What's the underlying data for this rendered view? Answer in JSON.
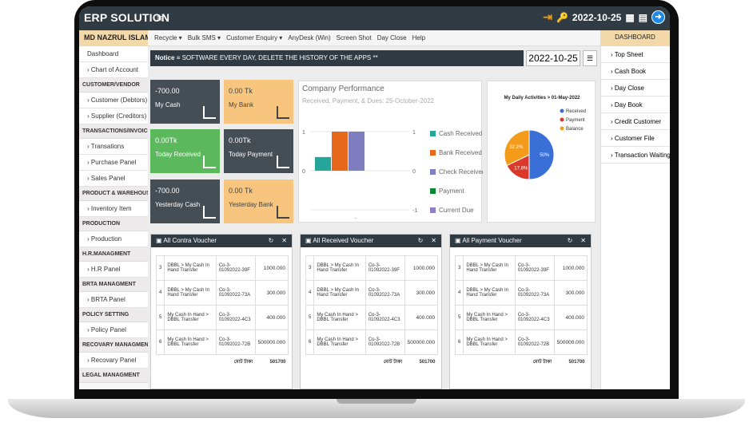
{
  "app": {
    "title": "ERP SOLUTION",
    "date": "2022-10-25"
  },
  "user": {
    "name": "MD NAZRUL ISLAM"
  },
  "toolbar": [
    "Recycle ▾",
    "Bulk SMS ▾",
    "Customer Enquiry ▾",
    "AnyDesk (Win)",
    "Screen Shot",
    "Day Close",
    "Help"
  ],
  "dashboard_label": "DASHBOARD",
  "sidebar": [
    {
      "type": "item",
      "label": "Dashboard"
    },
    {
      "type": "item",
      "label": "› Chart of Account"
    },
    {
      "type": "head",
      "label": "CUSTOMER/VENDOR"
    },
    {
      "type": "item",
      "label": "› Customer (Debtors)"
    },
    {
      "type": "item",
      "label": "› Supplier (Creditors)"
    },
    {
      "type": "head",
      "label": "TRANSACTIONS/INVOICE"
    },
    {
      "type": "item",
      "label": "› Transations"
    },
    {
      "type": "item",
      "label": "› Purchase Panel"
    },
    {
      "type": "item",
      "label": "› Sales Panel"
    },
    {
      "type": "head",
      "label": "PRODUCT & WAREHOUSES"
    },
    {
      "type": "item",
      "label": "› Inventory Item"
    },
    {
      "type": "head",
      "label": "PRODUCTION"
    },
    {
      "type": "item",
      "label": "› Production"
    },
    {
      "type": "head",
      "label": "H.R.MANAGMENT"
    },
    {
      "type": "item",
      "label": "› H.R Panel"
    },
    {
      "type": "head",
      "label": "BRTA MANAGMENT"
    },
    {
      "type": "item",
      "label": "› BRTA Panel"
    },
    {
      "type": "head",
      "label": "POLICY SETTING"
    },
    {
      "type": "item",
      "label": "› Policy Panel"
    },
    {
      "type": "head",
      "label": "RECOVARY MANAGMENT"
    },
    {
      "type": "item",
      "label": "› Recovary Panel"
    },
    {
      "type": "head",
      "label": "LEGAL MANAGMENT"
    }
  ],
  "right_menu": [
    "› Top Sheet",
    "› Cash Book",
    "› Day Close",
    "› Day Book",
    "› Credit Customer",
    "› Customer File",
    "› Transaction Waiting"
  ],
  "notice": {
    "label": "Notice",
    "text": "≡ SOFTWARE EVERY DAY, DELETE THE HISTORY OF THE APPS **"
  },
  "cards": [
    {
      "value": "-700.00",
      "label": "My Cash",
      "bg": "#454d55",
      "fg": "#ffffff"
    },
    {
      "value": "0.00 Tk",
      "label": "My Bank",
      "bg": "#f7c57d",
      "fg": "#444444"
    },
    {
      "value": "0.00Tk",
      "label": "Today Received",
      "bg": "#5cb85c",
      "fg": "#ffffff"
    },
    {
      "value": "0.00Tk",
      "label": "Today Payment",
      "bg": "#454d55",
      "fg": "#ffffff"
    },
    {
      "value": "-700.00",
      "label": "Yesterday Cash",
      "bg": "#454d55",
      "fg": "#ffffff"
    },
    {
      "value": "0.00 Tk",
      "label": "Yesterday Bank",
      "bg": "#f7c57d",
      "fg": "#444444"
    }
  ],
  "chart_data": [
    {
      "type": "bar",
      "title": "Company Performance",
      "subtitle": "Received, Payment, & Dues: 25-October-2022",
      "categories": [
        "-"
      ],
      "series": [
        {
          "name": "Cash Received",
          "values": [
            0.35
          ],
          "color": "#26a69a"
        },
        {
          "name": "Bank Received",
          "values": [
            1
          ],
          "color": "#e8681c"
        },
        {
          "name": "Check Received",
          "values": [
            1
          ],
          "color": "#7e7ec0"
        },
        {
          "name": "Payment",
          "values": [
            0
          ],
          "color": "#0a8a2e"
        },
        {
          "name": "Current Due",
          "values": [
            0
          ],
          "color": "#8f7fc4"
        }
      ],
      "ylim": [
        -1,
        1
      ],
      "left_ticks": [
        "1",
        "0"
      ],
      "right_ticks": [
        "1",
        "0",
        "-1"
      ]
    },
    {
      "type": "pie",
      "title": "My Daily Activities > 01-May-2022",
      "slices": [
        {
          "name": "Received",
          "value": 50,
          "label": "50%",
          "color": "#3a6fd8"
        },
        {
          "name": "Payment",
          "value": 17.8,
          "label": "17.8%",
          "color": "#d9382b"
        },
        {
          "name": "Balance",
          "value": 32.2,
          "label": "32.2%",
          "color": "#f59b1c"
        }
      ]
    }
  ],
  "panels": [
    {
      "title": "All Contra Voucher",
      "rows": [
        [
          "3",
          "DBBL > My Cash In Hand Transfer",
          "Co-3-01092022-39F",
          "1000.000"
        ],
        [
          "4",
          "DBBL > My Cash In Hand Transfer",
          "Co-3-01092022-73A",
          "300.000"
        ],
        [
          "5",
          "My Cash In Hand > DBBL Transfer",
          "Co-3-01092022-4C3",
          "400.000"
        ],
        [
          "6",
          "My Cash In Hand > DBBL Transfer",
          "Co-3-01092022-72B",
          "500000.000"
        ]
      ],
      "total_label": "মোট টাকা",
      "total": "501700"
    },
    {
      "title": "All Received Voucher",
      "rows": [
        [
          "3",
          "DBBL > My Cash In Hand Transfer",
          "Co-3-01092022-39F",
          "1000.000"
        ],
        [
          "4",
          "DBBL > My Cash In Hand Transfer",
          "Co-3-01092022-73A",
          "300.000"
        ],
        [
          "5",
          "My Cash In Hand > DBBL Transfer",
          "Co-3-01092022-4C3",
          "400.000"
        ],
        [
          "6",
          "My Cash In Hand > DBBL Transfer",
          "Co-3-01092022-72B",
          "500000.000"
        ]
      ],
      "total_label": "মোট টাকা",
      "total": "501700"
    },
    {
      "title": "All Payment Voucher",
      "rows": [
        [
          "3",
          "DBBL > My Cash In Hand Transfer",
          "Co-3-01092022-39F",
          "1000.000"
        ],
        [
          "4",
          "DBBL > My Cash In Hand Transfer",
          "Co-3-01092022-73A",
          "300.000"
        ],
        [
          "5",
          "My Cash In Hand > DBBL Transfer",
          "Co-3-01092022-4C3",
          "400.000"
        ],
        [
          "6",
          "My Cash In Hand > DBBL Transfer",
          "Co-3-01092022-72B",
          "500000.000"
        ]
      ],
      "total_label": "মোট টাকা",
      "total": "501700"
    }
  ]
}
